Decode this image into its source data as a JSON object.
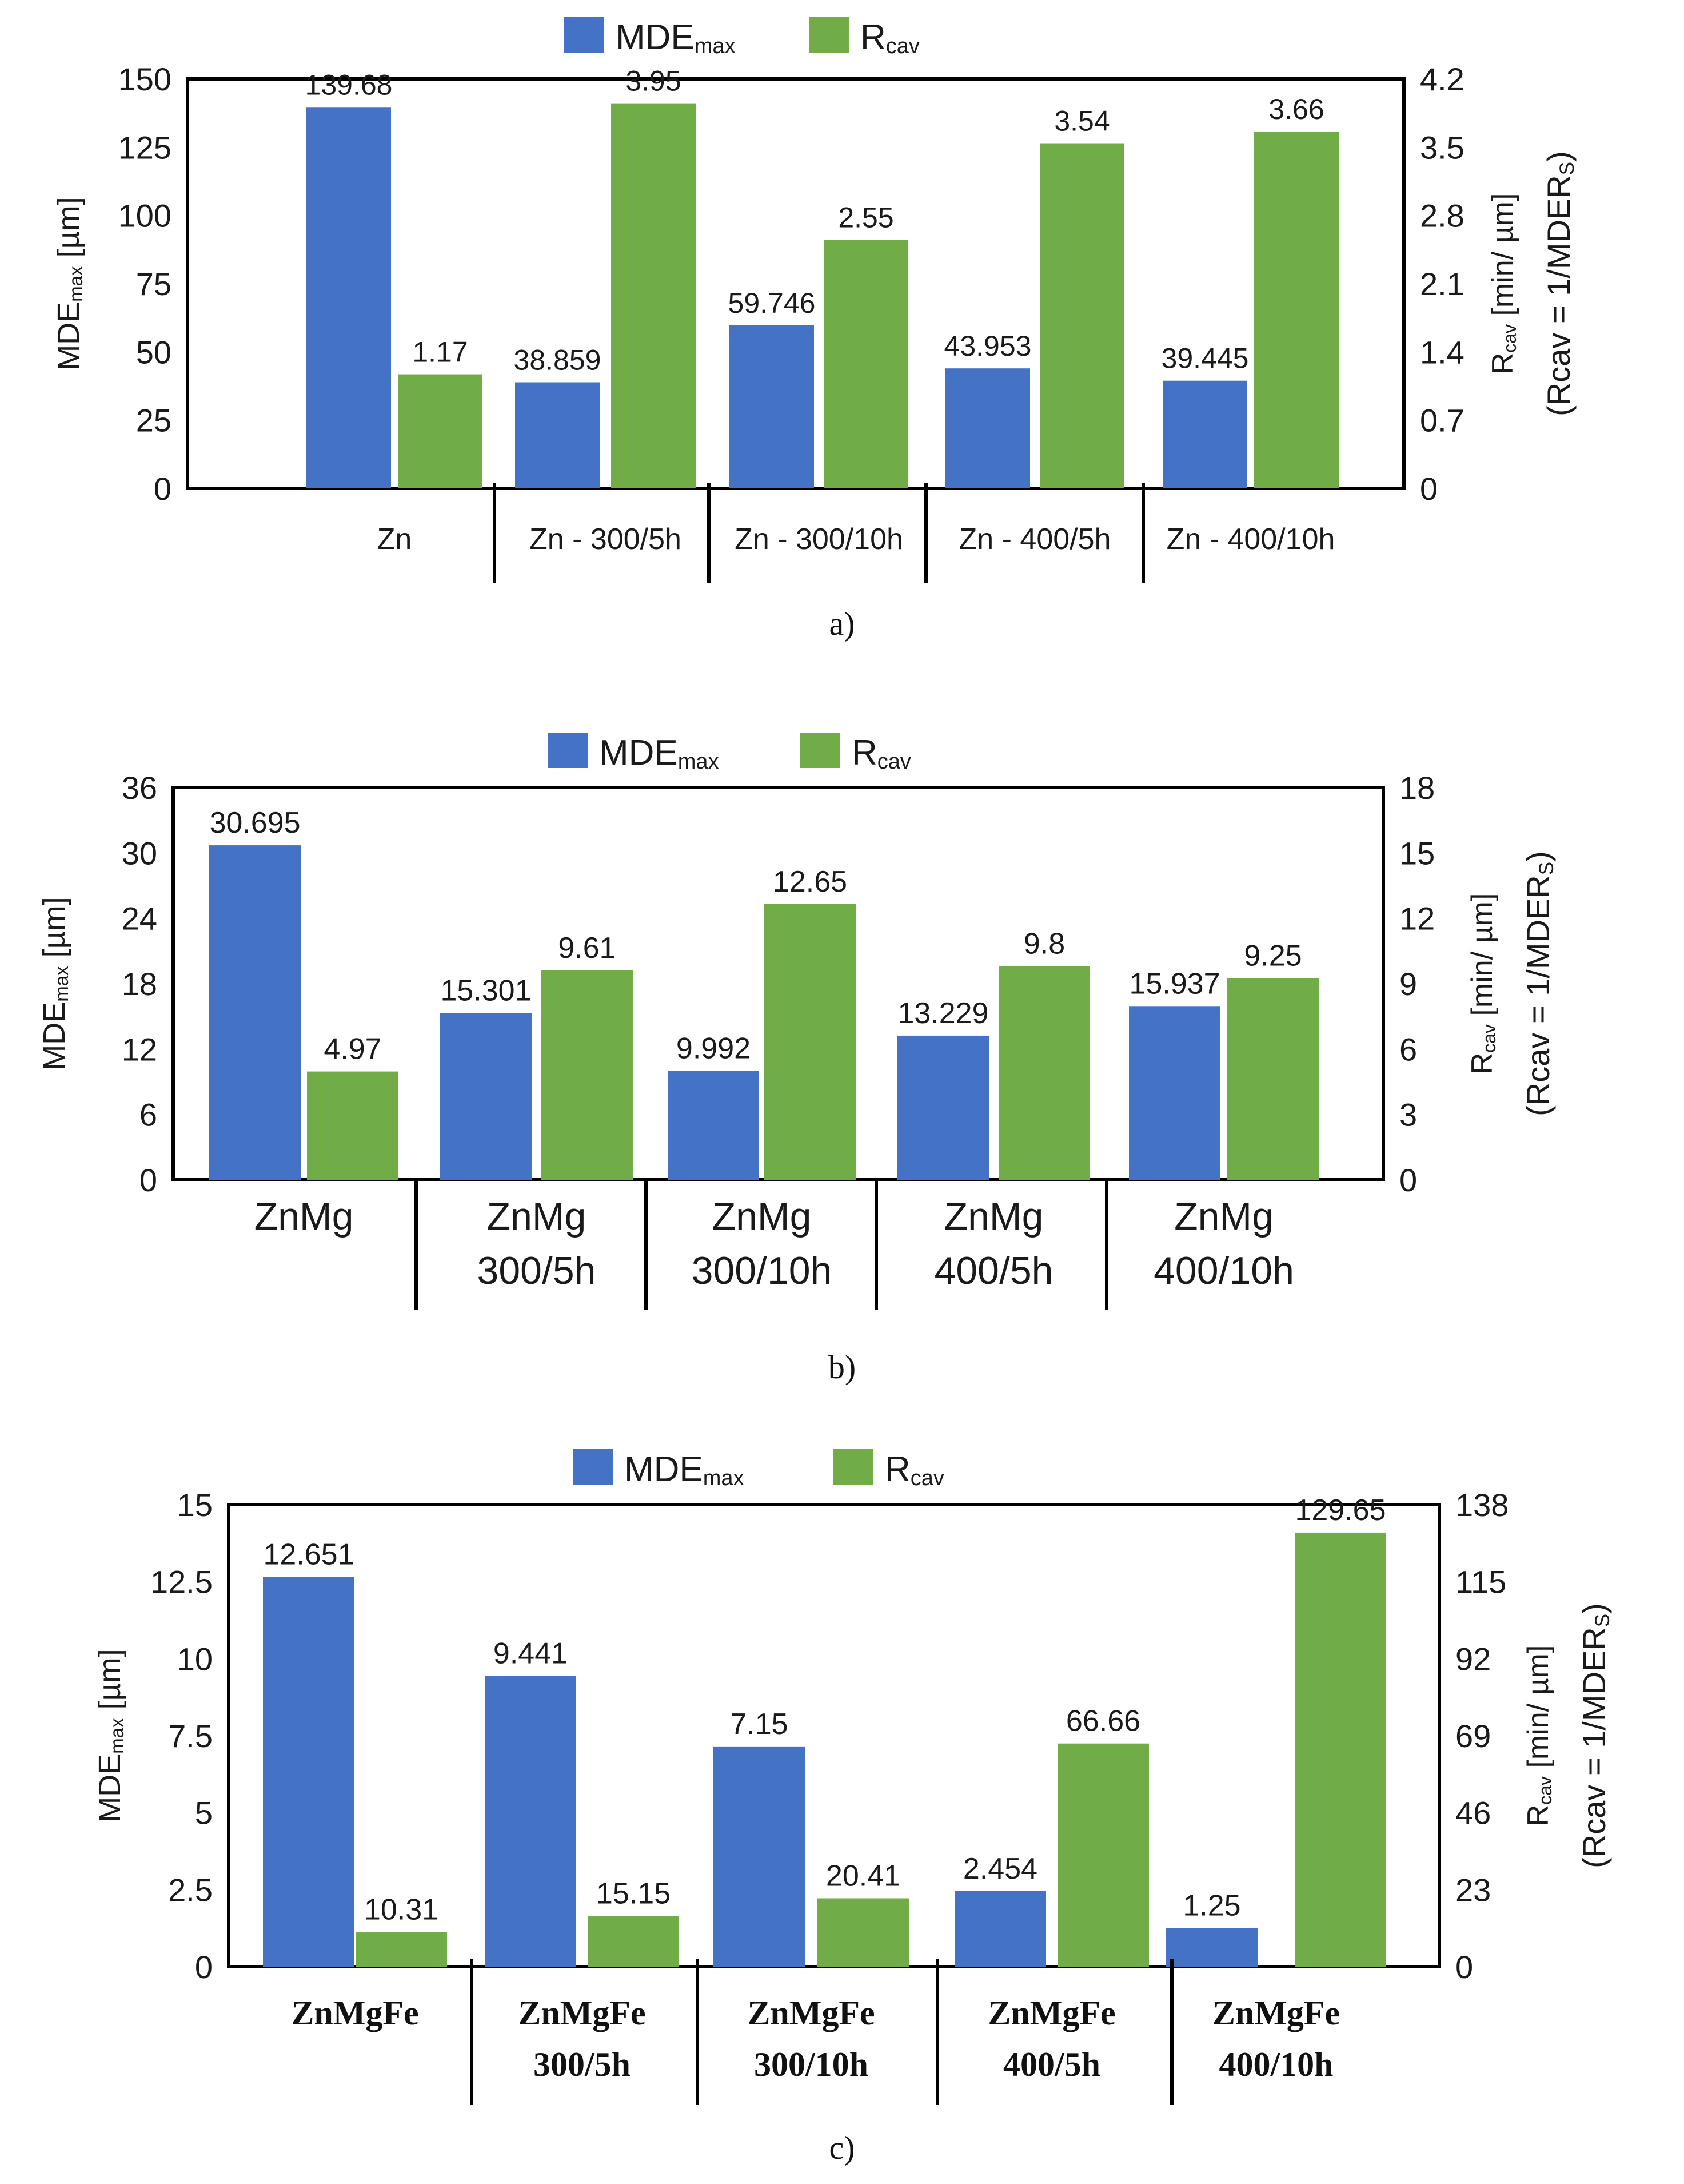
{
  "figure": {
    "panel_captions": [
      "a)",
      "b)",
      "c)"
    ]
  },
  "chart_data": [
    {
      "type": "bar",
      "panel": "a)",
      "legend": [
        "MDEmax",
        "Rcav"
      ],
      "legend_parts": [
        {
          "main": "MDE",
          "sub": "max"
        },
        {
          "main": "R",
          "sub": "cav"
        }
      ],
      "categories": [
        [
          "Zn"
        ],
        [
          "Zn - 300/5h"
        ],
        [
          "Zn - 300/10h"
        ],
        [
          "Zn - 400/5h"
        ],
        [
          "Zn - 400/10h"
        ]
      ],
      "series": [
        {
          "name": "MDEmax",
          "axis": "left",
          "color": "#4472C4",
          "values": [
            139.68,
            38.859,
            59.746,
            43.953,
            39.445
          ],
          "labels": [
            "139.68",
            "38.859",
            "59.746",
            "43.953",
            "39.445"
          ]
        },
        {
          "name": "Rcav",
          "axis": "right",
          "color": "#70AD47",
          "values": [
            1.17,
            3.95,
            2.55,
            3.54,
            3.66
          ],
          "labels": [
            "1.17",
            "3.95",
            "2.55",
            "3.54",
            "3.66"
          ]
        }
      ],
      "ylim": [
        0,
        150
      ],
      "yticks": [
        "0",
        "25",
        "50",
        "75",
        "100",
        "125",
        "150"
      ],
      "y2lim": [
        0,
        4.2
      ],
      "y2ticks": [
        "0",
        "0.7",
        "1.4",
        "2.1",
        "2.8",
        "3.5",
        "4.2"
      ],
      "ylabel": {
        "main": "MDE",
        "sub": "max",
        "rest": " [µm]"
      },
      "y2label": {
        "main": "R",
        "sub": "cav",
        "rest": " [min/ µm]",
        "line2": "(Rcav = 1/MDER",
        "line2_sub": "S",
        "line2_end": ")"
      },
      "grid": false
    },
    {
      "type": "bar",
      "panel": "b)",
      "legend": [
        "MDEmax",
        "Rcav"
      ],
      "legend_parts": [
        {
          "main": "MDE",
          "sub": "max"
        },
        {
          "main": "R",
          "sub": "cav"
        }
      ],
      "categories": [
        [
          "ZnMg"
        ],
        [
          "ZnMg",
          "300/5h"
        ],
        [
          "ZnMg",
          "300/10h"
        ],
        [
          "ZnMg",
          "400/5h"
        ],
        [
          "ZnMg",
          "400/10h"
        ]
      ],
      "series": [
        {
          "name": "MDEmax",
          "axis": "left",
          "color": "#4472C4",
          "values": [
            30.695,
            15.301,
            9.992,
            13.229,
            15.937
          ],
          "labels": [
            "30.695",
            "15.301",
            "9.992",
            "13.229",
            "15.937"
          ]
        },
        {
          "name": "Rcav",
          "axis": "right",
          "color": "#70AD47",
          "values": [
            4.97,
            9.61,
            12.65,
            9.8,
            9.25
          ],
          "labels": [
            "4.97",
            "9.61",
            "12.65",
            "9.8",
            "9.25"
          ]
        }
      ],
      "ylim": [
        0,
        36
      ],
      "yticks": [
        "0",
        "6",
        "12",
        "18",
        "24",
        "30",
        "36"
      ],
      "y2lim": [
        0,
        18
      ],
      "y2ticks": [
        "0",
        "3",
        "6",
        "9",
        "12",
        "15",
        "18"
      ],
      "ylabel": {
        "main": "MDE",
        "sub": "max",
        "rest": " [µm]"
      },
      "y2label": {
        "main": "R",
        "sub": "cav",
        "rest": " [min/ µm]",
        "line2": "(Rcav = 1/MDER",
        "line2_sub": "S",
        "line2_end": ")"
      },
      "grid": false
    },
    {
      "type": "bar",
      "panel": "c)",
      "legend": [
        "MDEmax",
        "Rcav"
      ],
      "legend_parts": [
        {
          "main": "MDE",
          "sub": "max"
        },
        {
          "main": "R",
          "sub": "cav"
        }
      ],
      "categories": [
        [
          "ZnMgFe"
        ],
        [
          "ZnMgFe",
          "300/5h"
        ],
        [
          "ZnMgFe",
          "300/10h"
        ],
        [
          "ZnMgFe",
          "400/5h"
        ],
        [
          "ZnMgFe",
          "400/10h"
        ]
      ],
      "series": [
        {
          "name": "MDEmax",
          "axis": "left",
          "color": "#4472C4",
          "values": [
            12.651,
            9.441,
            7.15,
            2.454,
            1.25
          ],
          "labels": [
            "12.651",
            "9.441",
            "7.15",
            "2.454",
            "1.25"
          ]
        },
        {
          "name": "Rcav",
          "axis": "right",
          "color": "#70AD47",
          "values": [
            10.31,
            15.15,
            20.41,
            66.66,
            129.65
          ],
          "labels": [
            "10.31",
            "15.15",
            "20.41",
            "66.66",
            "129.65"
          ]
        }
      ],
      "ylim": [
        0,
        15
      ],
      "yticks": [
        "0",
        "2.5",
        "5",
        "7.5",
        "10",
        "12.5",
        "15"
      ],
      "y2lim": [
        0,
        138
      ],
      "y2ticks": [
        "0",
        "23",
        "46",
        "69",
        "92",
        "115",
        "138"
      ],
      "ylabel": {
        "main": "MDE",
        "sub": "max",
        "rest": " [µm]"
      },
      "y2label": {
        "main": "R",
        "sub": "cav",
        "rest": " [min/ µm]",
        "line2": "(Rcav = 1/MDER",
        "line2_sub": "S",
        "line2_end": ")"
      },
      "grid": false
    }
  ]
}
